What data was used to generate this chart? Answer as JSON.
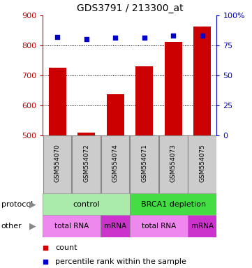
{
  "title": "GDS3791 / 213300_at",
  "samples": [
    "GSM554070",
    "GSM554072",
    "GSM554074",
    "GSM554071",
    "GSM554073",
    "GSM554075"
  ],
  "bar_values": [
    725,
    510,
    638,
    730,
    810,
    862
  ],
  "bar_bottom": 500,
  "percentile_values": [
    82,
    80,
    81,
    81,
    83,
    83
  ],
  "bar_color": "#cc0000",
  "dot_color": "#0000cc",
  "ylim_left": [
    500,
    900
  ],
  "yticks_left": [
    500,
    600,
    700,
    800,
    900
  ],
  "ylim_right": [
    0,
    100
  ],
  "yticks_right": [
    0,
    25,
    50,
    75,
    100
  ],
  "yticklabels_right": [
    "0",
    "25",
    "50",
    "75",
    "100%"
  ],
  "protocol_labels": [
    {
      "text": "control",
      "start": 0,
      "end": 3,
      "color": "#aaeaaa"
    },
    {
      "text": "BRCA1 depletion",
      "start": 3,
      "end": 6,
      "color": "#44dd44"
    }
  ],
  "other_labels": [
    {
      "text": "total RNA",
      "start": 0,
      "end": 2,
      "color": "#ee88ee"
    },
    {
      "text": "mRNA",
      "start": 2,
      "end": 3,
      "color": "#cc33cc"
    },
    {
      "text": "total RNA",
      "start": 3,
      "end": 5,
      "color": "#ee88ee"
    },
    {
      "text": "mRNA",
      "start": 5,
      "end": 6,
      "color": "#cc33cc"
    }
  ],
  "legend_count_color": "#cc0000",
  "legend_dot_color": "#0000cc",
  "left_tick_color": "#cc0000",
  "right_tick_color": "#0000cc",
  "protocol_arrow_label": "protocol",
  "other_arrow_label": "other",
  "sample_box_color": "#cccccc",
  "n_samples": 6,
  "fig_width": 3.61,
  "fig_height": 3.84,
  "fig_dpi": 100
}
